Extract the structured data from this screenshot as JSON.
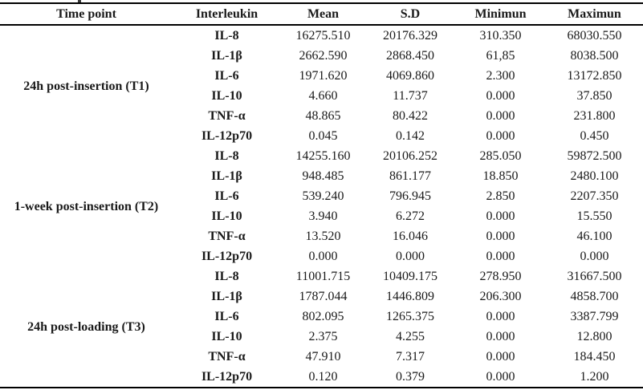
{
  "table": {
    "headers": [
      "Time point",
      "Interleukin",
      "Mean",
      "S.D",
      "Minimun",
      "Maximun"
    ],
    "groups": [
      {
        "time_point": "24h post-insertion (T1)",
        "rows": [
          {
            "interleukin": "IL-8",
            "mean": "16275.510",
            "sd": "20176.329",
            "min": "310.350",
            "max": "68030.550"
          },
          {
            "interleukin": "IL-1β",
            "mean": "2662.590",
            "sd": "2868.450",
            "min": "61,85",
            "max": "8038.500"
          },
          {
            "interleukin": "IL-6",
            "mean": "1971.620",
            "sd": "4069.860",
            "min": "2.300",
            "max": "13172.850"
          },
          {
            "interleukin": "IL-10",
            "mean": "4.660",
            "sd": "11.737",
            "min": "0.000",
            "max": "37.850"
          },
          {
            "interleukin": "TNF-α",
            "mean": "48.865",
            "sd": "80.422",
            "min": "0.000",
            "max": "231.800"
          },
          {
            "interleukin": "IL-12p70",
            "mean": "0.045",
            "sd": "0.142",
            "min": "0.000",
            "max": "0.450"
          }
        ]
      },
      {
        "time_point": "1-week post-insertion (T2)",
        "rows": [
          {
            "interleukin": "IL-8",
            "mean": "14255.160",
            "sd": "20106.252",
            "min": "285.050",
            "max": "59872.500"
          },
          {
            "interleukin": "IL-1β",
            "mean": "948.485",
            "sd": "861.177",
            "min": "18.850",
            "max": "2480.100"
          },
          {
            "interleukin": "IL-6",
            "mean": "539.240",
            "sd": "796.945",
            "min": "2.850",
            "max": "2207.350"
          },
          {
            "interleukin": "IL-10",
            "mean": "3.940",
            "sd": "6.272",
            "min": "0.000",
            "max": "15.550"
          },
          {
            "interleukin": "TNF-α",
            "mean": "13.520",
            "sd": "16.046",
            "min": "0.000",
            "max": "46.100"
          },
          {
            "interleukin": "IL-12p70",
            "mean": "0.000",
            "sd": "0.000",
            "min": "0.000",
            "max": "0.000"
          }
        ]
      },
      {
        "time_point": "24h post-loading (T3)",
        "rows": [
          {
            "interleukin": "IL-8",
            "mean": "11001.715",
            "sd": "10409.175",
            "min": "278.950",
            "max": "31667.500"
          },
          {
            "interleukin": "IL-1β",
            "mean": "1787.044",
            "sd": "1446.809",
            "min": "206.300",
            "max": "4858.700"
          },
          {
            "interleukin": "IL-6",
            "mean": "802.095",
            "sd": "1265.375",
            "min": "0.000",
            "max": "3387.799"
          },
          {
            "interleukin": "IL-10",
            "mean": "2.375",
            "sd": "4.255",
            "min": "0.000",
            "max": "12.800"
          },
          {
            "interleukin": "TNF-α",
            "mean": "47.910",
            "sd": "7.317",
            "min": "0.000",
            "max": "184.450"
          },
          {
            "interleukin": "IL-12p70",
            "mean": "0.120",
            "sd": "0.379",
            "min": "0.000",
            "max": "1.200"
          }
        ]
      }
    ]
  },
  "chart_data": {
    "type": "table",
    "title": "",
    "columns": [
      "Time point",
      "Interleukin",
      "Mean",
      "S.D",
      "Minimun",
      "Maximun"
    ],
    "rows": [
      [
        "24h post-insertion (T1)",
        "IL-8",
        "16275.510",
        "20176.329",
        "310.350",
        "68030.550"
      ],
      [
        "",
        "IL-1β",
        "2662.590",
        "2868.450",
        "61,85",
        "8038.500"
      ],
      [
        "",
        "IL-6",
        "1971.620",
        "4069.860",
        "2.300",
        "13172.850"
      ],
      [
        "",
        "IL-10",
        "4.660",
        "11.737",
        "0.000",
        "37.850"
      ],
      [
        "",
        "TNF-α",
        "48.865",
        "80.422",
        "0.000",
        "231.800"
      ],
      [
        "",
        "IL-12p70",
        "0.045",
        "0.142",
        "0.000",
        "0.450"
      ],
      [
        "1-week post-insertion (T2)",
        "IL-8",
        "14255.160",
        "20106.252",
        "285.050",
        "59872.500"
      ],
      [
        "",
        "IL-1β",
        "948.485",
        "861.177",
        "18.850",
        "2480.100"
      ],
      [
        "",
        "IL-6",
        "539.240",
        "796.945",
        "2.850",
        "2207.350"
      ],
      [
        "",
        "IL-10",
        "3.940",
        "6.272",
        "0.000",
        "15.550"
      ],
      [
        "",
        "TNF-α",
        "13.520",
        "16.046",
        "0.000",
        "46.100"
      ],
      [
        "",
        "IL-12p70",
        "0.000",
        "0.000",
        "0.000",
        "0.000"
      ],
      [
        "24h post-loading (T3)",
        "IL-8",
        "11001.715",
        "10409.175",
        "278.950",
        "31667.500"
      ],
      [
        "",
        "IL-1β",
        "1787.044",
        "1446.809",
        "206.300",
        "4858.700"
      ],
      [
        "",
        "IL-6",
        "802.095",
        "1265.375",
        "0.000",
        "3387.799"
      ],
      [
        "",
        "IL-10",
        "2.375",
        "4.255",
        "0.000",
        "12.800"
      ],
      [
        "",
        "TNF-α",
        "47.910",
        "7.317",
        "0.000",
        "184.450"
      ],
      [
        "",
        "IL-12p70",
        "0.120",
        "0.379",
        "0.000",
        "1.200"
      ]
    ]
  },
  "colors": {
    "text": "#1a1a1a",
    "rule": "#000000",
    "background": "#ffffff"
  }
}
